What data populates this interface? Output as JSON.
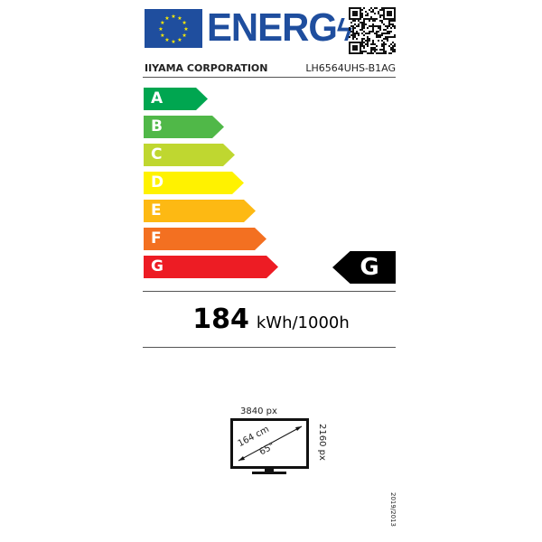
{
  "header": {
    "energy_word": "ENERG",
    "icons": [
      "eu-flag-icon",
      "lightning-icon",
      "qr-code-icon"
    ]
  },
  "supplier": "IIYAMA CORPORATION",
  "model": "LH6564UHS-B1AG",
  "scale": [
    {
      "label": "A",
      "color": "#00a650"
    },
    {
      "label": "B",
      "color": "#50b848"
    },
    {
      "label": "C",
      "color": "#bfd730"
    },
    {
      "label": "D",
      "color": "#fff200"
    },
    {
      "label": "E",
      "color": "#fdb913"
    },
    {
      "label": "F",
      "color": "#f37021"
    },
    {
      "label": "G",
      "color": "#ed1c24"
    }
  ],
  "energy_class": "G",
  "consumption": {
    "value": "184",
    "unit": "kWh/1000h"
  },
  "screen": {
    "width_px": "3840 px",
    "height_px": "2160 px",
    "diagonal_cm": "164 cm",
    "diagonal_in": "65\""
  },
  "regulation": "2019/2013"
}
